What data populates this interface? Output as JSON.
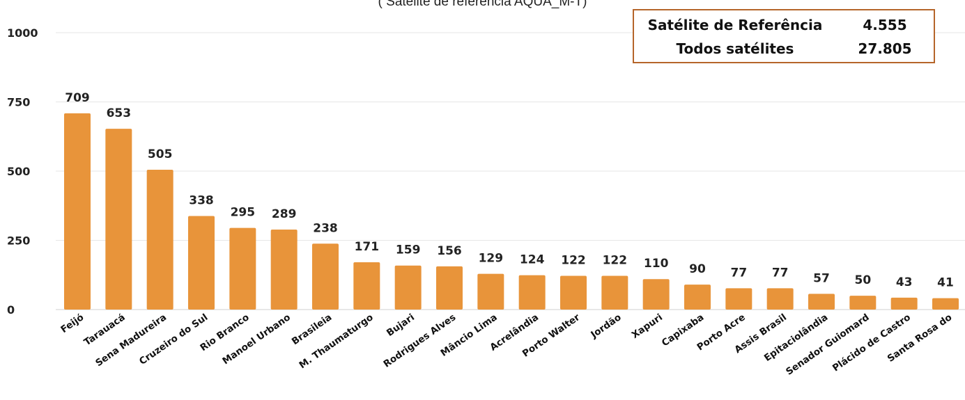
{
  "subtitle": "( Satélite de referência AQUA_M-T)",
  "summary": {
    "rows": [
      {
        "label": "Satélite de Referência",
        "value": "4.555"
      },
      {
        "label": "Todos satélites",
        "value": "27.805"
      }
    ],
    "border_color": "#b5652a"
  },
  "chart_data": {
    "type": "bar",
    "categories": [
      "Feijó",
      "Tarauacá",
      "Sena Madureira",
      "Cruzeiro do Sul",
      "Rio Branco",
      "Manoel Urbano",
      "Brasileia",
      "M. Thaumaturgo",
      "Bujari",
      "Rodrigues Alves",
      "Mâncio Lima",
      "Acrelândia",
      "Porto Walter",
      "Jordão",
      "Xapuri",
      "Capixaba",
      "Porto Acre",
      "Assis Brasil",
      "Epitaciolândia",
      "Senador Guiomard",
      "Plácido de Castro",
      "Santa Rosa do"
    ],
    "values": [
      709,
      653,
      505,
      338,
      295,
      289,
      238,
      171,
      159,
      156,
      129,
      124,
      122,
      122,
      110,
      90,
      77,
      77,
      57,
      50,
      43,
      41
    ],
    "ylim": [
      0,
      1000
    ],
    "yticks": [
      0,
      250,
      500,
      750,
      1000
    ],
    "grid": true,
    "bar_color": "#e8943a",
    "grid_color": "#e6e6e6",
    "title": "",
    "xlabel": "",
    "ylabel": ""
  }
}
